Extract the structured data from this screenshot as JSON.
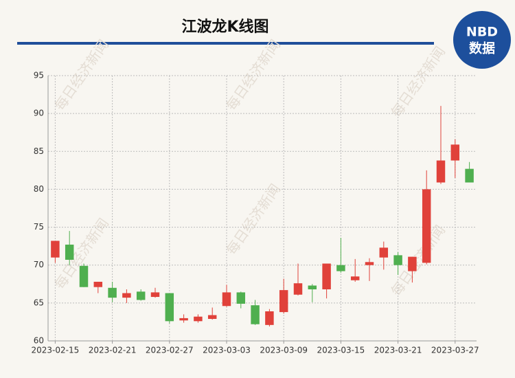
{
  "chart_data": {
    "type": "candlestick",
    "title": "江波龙K线图",
    "logo": [
      "NBD",
      "数据"
    ],
    "watermark": "每日经济新闻",
    "categories": [
      "2023-02-15",
      null,
      null,
      null,
      "2023-02-21",
      null,
      null,
      null,
      "2023-02-27",
      null,
      null,
      null,
      "2023-03-03",
      null,
      null,
      null,
      "2023-03-09",
      null,
      null,
      null,
      "2023-03-15",
      null,
      null,
      null,
      "2023-03-21",
      null,
      null,
      null,
      "2023-03-27",
      null
    ],
    "open": [
      71.0,
      72.7,
      69.9,
      67.1,
      67.0,
      65.7,
      66.5,
      65.8,
      66.3,
      62.7,
      62.6,
      62.9,
      64.6,
      66.4,
      64.7,
      62.1,
      63.8,
      66.1,
      67.3,
      66.8,
      70.0,
      68.0,
      70.0,
      71.0,
      71.3,
      69.2,
      70.3,
      80.9,
      83.8,
      82.7
    ],
    "close": [
      73.2,
      70.7,
      67.1,
      67.8,
      65.7,
      66.3,
      65.4,
      66.4,
      62.6,
      63.0,
      63.2,
      63.4,
      66.4,
      64.9,
      62.2,
      63.9,
      66.7,
      67.6,
      66.8,
      70.2,
      69.2,
      68.5,
      70.4,
      72.3,
      70.0,
      71.1,
      80.0,
      83.8,
      85.9,
      80.9
    ],
    "high": [
      73.2,
      74.5,
      70.2,
      67.8,
      67.8,
      66.8,
      66.8,
      67.0,
      66.3,
      63.5,
      63.5,
      64.4,
      67.4,
      66.5,
      65.4,
      64.2,
      68.2,
      70.2,
      67.5,
      70.2,
      73.6,
      70.8,
      70.9,
      73.1,
      71.7,
      71.1,
      82.5,
      91.0,
      86.6,
      83.6
    ],
    "low": [
      70.3,
      70.0,
      67.1,
      66.3,
      65.1,
      65.0,
      65.3,
      65.7,
      62.3,
      62.4,
      62.4,
      62.8,
      64.5,
      64.3,
      62.1,
      61.9,
      63.6,
      66.0,
      65.1,
      65.6,
      69.0,
      67.8,
      67.9,
      69.4,
      68.7,
      67.7,
      70.1,
      80.7,
      81.5,
      80.9
    ],
    "up_color": "#e0413a",
    "down_color": "#4faf4f",
    "ylim": [
      60,
      95
    ],
    "yticks": [
      60,
      65,
      70,
      75,
      80,
      85,
      90,
      95
    ],
    "grid": true
  }
}
